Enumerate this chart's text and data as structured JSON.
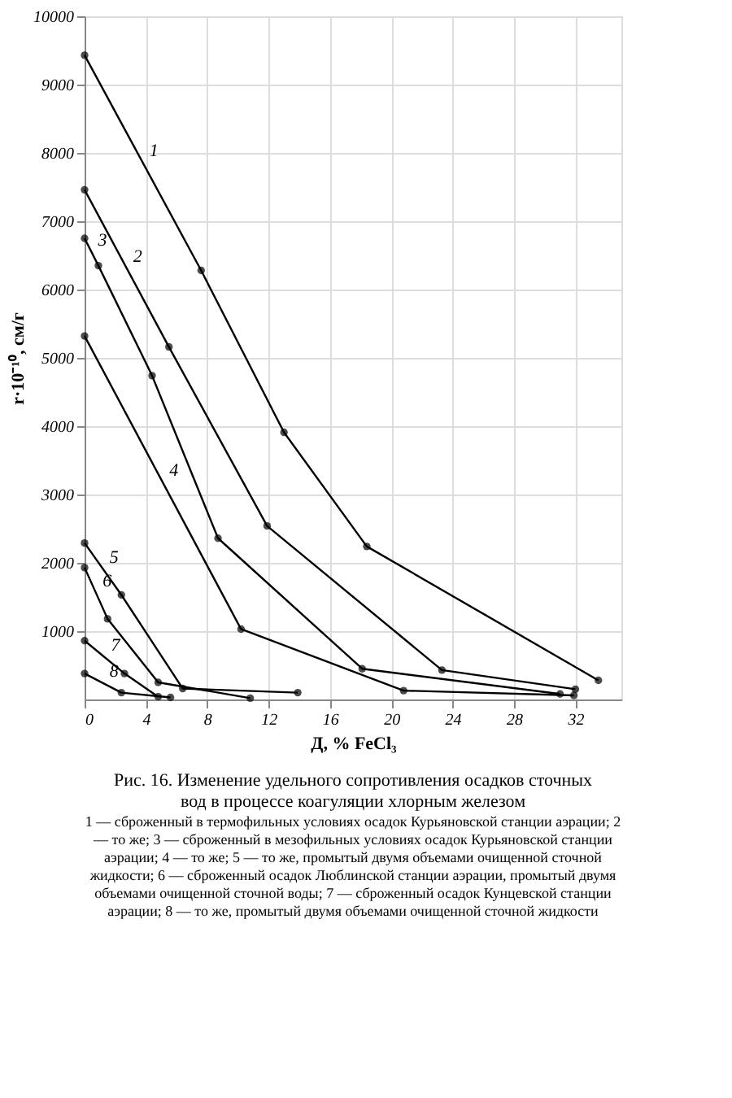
{
  "chart_data": {
    "type": "line",
    "title": "Рис. 16. Изменение удельного сопротивления осадков сточных вод в процессе коагуляции хлорным железом",
    "annotations": [
      "1 — сброженный в термофильных условиях осадок Курьяновской станции аэрации; 2 — то же; 3 — сброженный в мезофильных условиях осадок Курьяновской станции аэрации; 4 — то же; 5 — то же, промытый двумя объемами очищенной сточной жидкости; 6 — сброженный осадок Люблинской станции аэрации, промытый двумя объемами очищенной сточной воды; 7 — сброженный осадок Кунцевской станции аэрации; 8 — то же, промытый двумя объемами очищенной сточной жидкости"
    ],
    "xlabel": "Д, % FeCl₃",
    "ylabel": "r·10⁻¹⁰, см/г",
    "xlim": [
      0,
      35
    ],
    "xticks": [
      0,
      4,
      8,
      12,
      16,
      20,
      24,
      28,
      32
    ],
    "ylim": [
      0,
      10000
    ],
    "yticks": [
      1000,
      2000,
      3000,
      4000,
      5000,
      6000,
      7000,
      8000,
      9000,
      10000
    ],
    "grid": true,
    "marker": "circle",
    "line_style": "solid",
    "legend": false,
    "series": [
      {
        "name": "1",
        "color": "#000000",
        "x": [
          0,
          7.6,
          13,
          18.4,
          33.5
        ],
        "values": [
          9430,
          6280,
          3910,
          2240,
          280
        ]
      },
      {
        "name": "2",
        "color": "#000000",
        "x": [
          0,
          5.5,
          11.9,
          23.3,
          32
        ],
        "values": [
          7460,
          5160,
          2540,
          430,
          150
        ]
      },
      {
        "name": "3",
        "color": "#000000",
        "x": [
          0,
          0.9,
          4.4,
          8.7,
          18.1,
          31
        ],
        "values": [
          6750,
          6350,
          4740,
          2360,
          450,
          80
        ]
      },
      {
        "name": "4",
        "color": "#000000",
        "x": [
          0,
          10.2,
          20.8,
          31.9
        ],
        "values": [
          5320,
          1030,
          130,
          60
        ]
      },
      {
        "name": "5",
        "color": "#000000",
        "x": [
          0,
          2.4,
          6.4,
          13.9
        ],
        "values": [
          2290,
          1530,
          160,
          100
        ]
      },
      {
        "name": "6",
        "color": "#000000",
        "x": [
          0,
          1.5,
          4.8,
          10.8
        ],
        "values": [
          1930,
          1180,
          250,
          20
        ]
      },
      {
        "name": "7",
        "color": "#000000",
        "x": [
          0,
          2.6,
          4.8
        ],
        "values": [
          860,
          380,
          40
        ]
      },
      {
        "name": "8",
        "color": "#000000",
        "x": [
          0,
          2.4,
          5.6
        ],
        "values": [
          380,
          100,
          30
        ]
      }
    ]
  }
}
